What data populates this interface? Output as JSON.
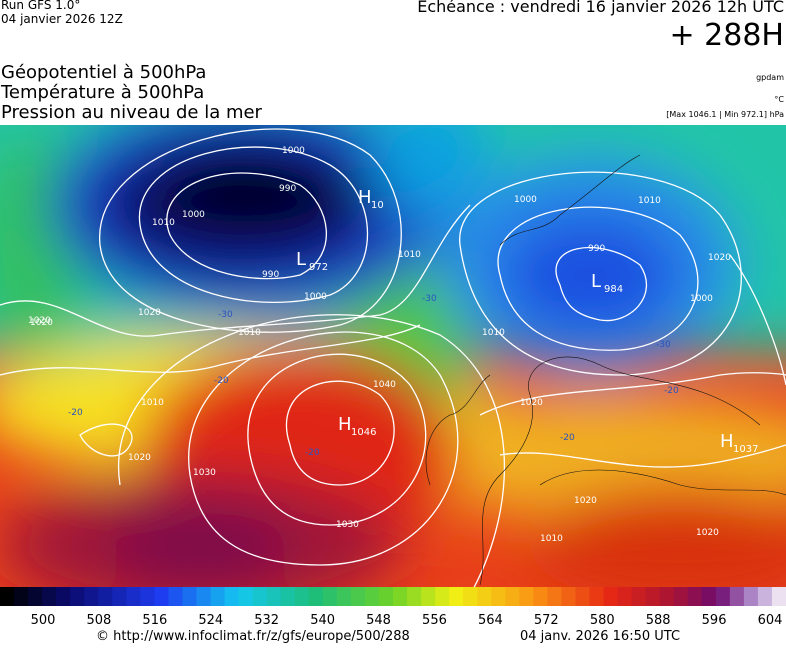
{
  "header": {
    "run": "Run GFS 1.0°",
    "run_date": "04 janvier 2026 12Z",
    "forecast": "Echéance : vendredi 16 janvier 2026 12h UTC",
    "lead": "+ 288H"
  },
  "legend": {
    "lines": [
      "Géopotentiel à 500hPa",
      "Température à 500hPa",
      "Pression au niveau de la mer"
    ],
    "unit_geopotential": "gpdam",
    "unit_temperature": "°C",
    "pressure_range": "[Max 1046.1 | Min 972.1] hPa"
  },
  "map": {
    "centers": [
      {
        "letter": "H",
        "value": 1046
      },
      {
        "letter": "L",
        "value": 972
      },
      {
        "letter": "L",
        "value": 984
      },
      {
        "letter": "H",
        "value": 1037
      },
      {
        "letter": "H",
        "value": 10
      }
    ],
    "isobar_labels": [
      1000,
      990,
      1000,
      1010,
      990,
      1000,
      1010,
      1020,
      1020,
      1010,
      1000,
      990,
      1010,
      1020,
      1000,
      1010,
      1020,
      1040,
      1030,
      1030,
      1020,
      1010,
      1020,
      1010,
      1020,
      1020
    ],
    "temperature_labels": [
      -30,
      -30,
      -20,
      -20,
      -20,
      -20,
      -30,
      -20
    ]
  },
  "colorbar": {
    "ticks": [
      500,
      508,
      516,
      524,
      532,
      540,
      548,
      556,
      564,
      572,
      580,
      588,
      596,
      604
    ]
  },
  "footer": {
    "source": "© http://www.infoclimat.fr/z/gfs/europe/500/288",
    "timestamp": "04 janv. 2026 16:50 UTC"
  }
}
